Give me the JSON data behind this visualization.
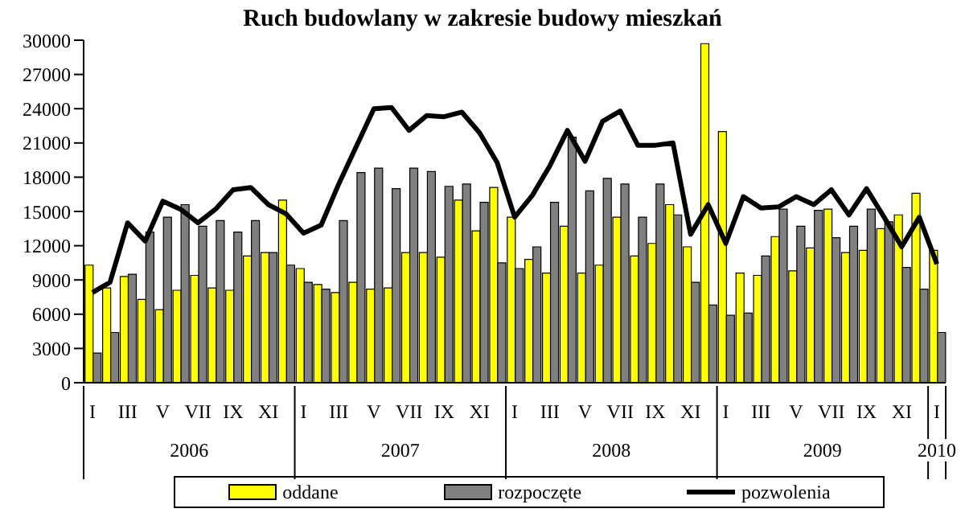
{
  "chart_data": {
    "type": "bar",
    "title": "Ruch budowlany w zakresie budowy mieszkań",
    "categories": [
      "I",
      null,
      "III",
      null,
      "V",
      null,
      "VII",
      null,
      "IX",
      null,
      "XI",
      null,
      "I",
      null,
      "III",
      null,
      "V",
      null,
      "VII",
      null,
      "IX",
      null,
      "XI",
      null,
      "I",
      null,
      "III",
      null,
      "V",
      null,
      "VII",
      null,
      "IX",
      null,
      "XI",
      null,
      "I",
      null,
      "III",
      null,
      "V",
      null,
      "VII",
      null,
      "IX",
      null,
      "XI",
      null,
      "I"
    ],
    "annotations": [
      "2006",
      "2007",
      "2008",
      "2009",
      "2010"
    ],
    "series": [
      {
        "name": "oddane",
        "color": "#ffff00",
        "values": [
          10300,
          8300,
          9300,
          7300,
          6400,
          8100,
          9400,
          8300,
          8100,
          11100,
          11400,
          16000,
          10000,
          8600,
          7900,
          8800,
          8200,
          8300,
          11400,
          11400,
          11000,
          16000,
          13300,
          17100,
          14500,
          10800,
          9600,
          13700,
          9600,
          10300,
          14500,
          11100,
          12200,
          15600,
          11900,
          29700,
          22000,
          9600,
          9400,
          12800,
          9800,
          11800,
          15200,
          11400,
          11600,
          13500,
          14700,
          16600,
          11600
        ]
      },
      {
        "name": "rozpoczęte",
        "color": "#808080",
        "values": [
          2600,
          4400,
          9500,
          13200,
          14500,
          15600,
          13700,
          14200,
          13200,
          14200,
          11400,
          10300,
          8800,
          8200,
          14200,
          18400,
          18800,
          17000,
          18800,
          18500,
          17200,
          17400,
          15800,
          10500,
          10000,
          11900,
          15800,
          21500,
          16800,
          17900,
          17400,
          14500,
          17400,
          14700,
          8800,
          6800,
          5900,
          6100,
          11100,
          15200,
          13700,
          15100,
          12700,
          13700,
          15200,
          14100,
          10100,
          8200,
          4400
        ]
      },
      {
        "name": "pozwolenia",
        "type": "line",
        "color": "#000000",
        "values": [
          7900,
          8800,
          14000,
          12400,
          15900,
          15200,
          14000,
          15200,
          16900,
          17100,
          15600,
          14800,
          13100,
          13800,
          17400,
          20700,
          24000,
          24100,
          22100,
          23400,
          23300,
          23700,
          21900,
          19300,
          14500,
          16400,
          19000,
          22100,
          19400,
          22900,
          23800,
          20800,
          20800,
          21000,
          13000,
          15600,
          12200,
          16300,
          15300,
          15400,
          16300,
          15600,
          16900,
          14700,
          17000,
          14500,
          11900,
          14500,
          10400
        ]
      }
    ],
    "ylim": [
      0,
      30000
    ],
    "yticks": [
      0,
      3000,
      6000,
      9000,
      12000,
      15000,
      18000,
      21000,
      24000,
      27000,
      30000
    ],
    "legend": "bottom",
    "marker": "none",
    "line_style": "solid"
  }
}
